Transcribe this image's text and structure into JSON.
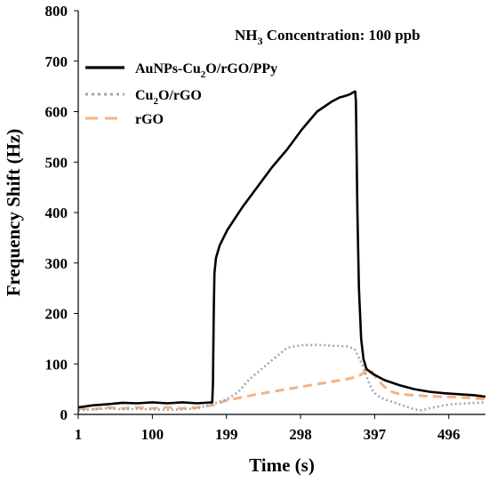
{
  "chart_data": {
    "type": "line",
    "annotation_prefix": "NH",
    "annotation_subscript": "3",
    "annotation_suffix": " Concentration: 100 ppb",
    "xlabel": "Time (s)",
    "ylabel": "Frequency Shift (Hz)",
    "xlim": [
      1,
      545
    ],
    "ylim": [
      0,
      800
    ],
    "x_ticks": [
      1,
      100,
      199,
      298,
      397,
      496
    ],
    "y_ticks": [
      0,
      100,
      200,
      300,
      400,
      500,
      600,
      700,
      800
    ],
    "grid": false,
    "legend_position": "top-left",
    "series": [
      {
        "name": "AuNPs-Cu2O/rGO/PPy",
        "legend_parts": [
          "AuNPs-Cu",
          "2",
          "O/rGO/PPy"
        ],
        "color": "#000000",
        "style": "solid",
        "points": [
          [
            1,
            14
          ],
          [
            20,
            18
          ],
          [
            40,
            20
          ],
          [
            60,
            23
          ],
          [
            80,
            22
          ],
          [
            100,
            24
          ],
          [
            120,
            22
          ],
          [
            140,
            24
          ],
          [
            160,
            22
          ],
          [
            180,
            24
          ],
          [
            181,
            60
          ],
          [
            182,
            200
          ],
          [
            183,
            280
          ],
          [
            185,
            310
          ],
          [
            190,
            335
          ],
          [
            195,
            350
          ],
          [
            200,
            365
          ],
          [
            220,
            410
          ],
          [
            240,
            450
          ],
          [
            260,
            490
          ],
          [
            280,
            525
          ],
          [
            300,
            565
          ],
          [
            320,
            600
          ],
          [
            340,
            620
          ],
          [
            350,
            628
          ],
          [
            355,
            630
          ],
          [
            360,
            632
          ],
          [
            365,
            635
          ],
          [
            368,
            638
          ],
          [
            371,
            640
          ],
          [
            372,
            620
          ],
          [
            374,
            400
          ],
          [
            376,
            250
          ],
          [
            379,
            150
          ],
          [
            382,
            110
          ],
          [
            386,
            90
          ],
          [
            395,
            80
          ],
          [
            410,
            68
          ],
          [
            430,
            58
          ],
          [
            450,
            50
          ],
          [
            470,
            45
          ],
          [
            490,
            42
          ],
          [
            510,
            40
          ],
          [
            530,
            38
          ],
          [
            545,
            35
          ]
        ]
      },
      {
        "name": "Cu2O/rGO",
        "legend_parts": [
          "Cu",
          "2",
          "O/rGO"
        ],
        "color": "#a6a6a6",
        "style": "dotted",
        "points": [
          [
            1,
            8
          ],
          [
            20,
            10
          ],
          [
            40,
            12
          ],
          [
            60,
            10
          ],
          [
            80,
            11
          ],
          [
            100,
            10
          ],
          [
            120,
            9
          ],
          [
            140,
            10
          ],
          [
            160,
            12
          ],
          [
            180,
            20
          ],
          [
            200,
            30
          ],
          [
            215,
            45
          ],
          [
            230,
            70
          ],
          [
            250,
            95
          ],
          [
            270,
            120
          ],
          [
            280,
            132
          ],
          [
            290,
            135
          ],
          [
            300,
            137
          ],
          [
            320,
            138
          ],
          [
            340,
            136
          ],
          [
            360,
            135
          ],
          [
            370,
            130
          ],
          [
            380,
            100
          ],
          [
            385,
            80
          ],
          [
            390,
            60
          ],
          [
            395,
            45
          ],
          [
            400,
            38
          ],
          [
            410,
            30
          ],
          [
            420,
            25
          ],
          [
            430,
            20
          ],
          [
            440,
            15
          ],
          [
            450,
            10
          ],
          [
            460,
            8
          ],
          [
            470,
            12
          ],
          [
            480,
            15
          ],
          [
            490,
            18
          ],
          [
            500,
            20
          ],
          [
            520,
            22
          ],
          [
            545,
            24
          ]
        ]
      },
      {
        "name": "rGO",
        "legend_parts": [
          "rGO"
        ],
        "color": "#f4b183",
        "style": "dashed",
        "points": [
          [
            1,
            12
          ],
          [
            20,
            10
          ],
          [
            40,
            14
          ],
          [
            60,
            12
          ],
          [
            80,
            14
          ],
          [
            100,
            12
          ],
          [
            120,
            14
          ],
          [
            140,
            12
          ],
          [
            160,
            14
          ],
          [
            180,
            18
          ],
          [
            200,
            28
          ],
          [
            220,
            34
          ],
          [
            240,
            40
          ],
          [
            260,
            45
          ],
          [
            280,
            50
          ],
          [
            300,
            55
          ],
          [
            320,
            60
          ],
          [
            340,
            65
          ],
          [
            360,
            70
          ],
          [
            375,
            75
          ],
          [
            385,
            85
          ],
          [
            392,
            88
          ],
          [
            400,
            70
          ],
          [
            410,
            55
          ],
          [
            420,
            45
          ],
          [
            430,
            40
          ],
          [
            450,
            38
          ],
          [
            470,
            36
          ],
          [
            490,
            35
          ],
          [
            510,
            34
          ],
          [
            530,
            32
          ],
          [
            545,
            30
          ]
        ]
      }
    ]
  }
}
